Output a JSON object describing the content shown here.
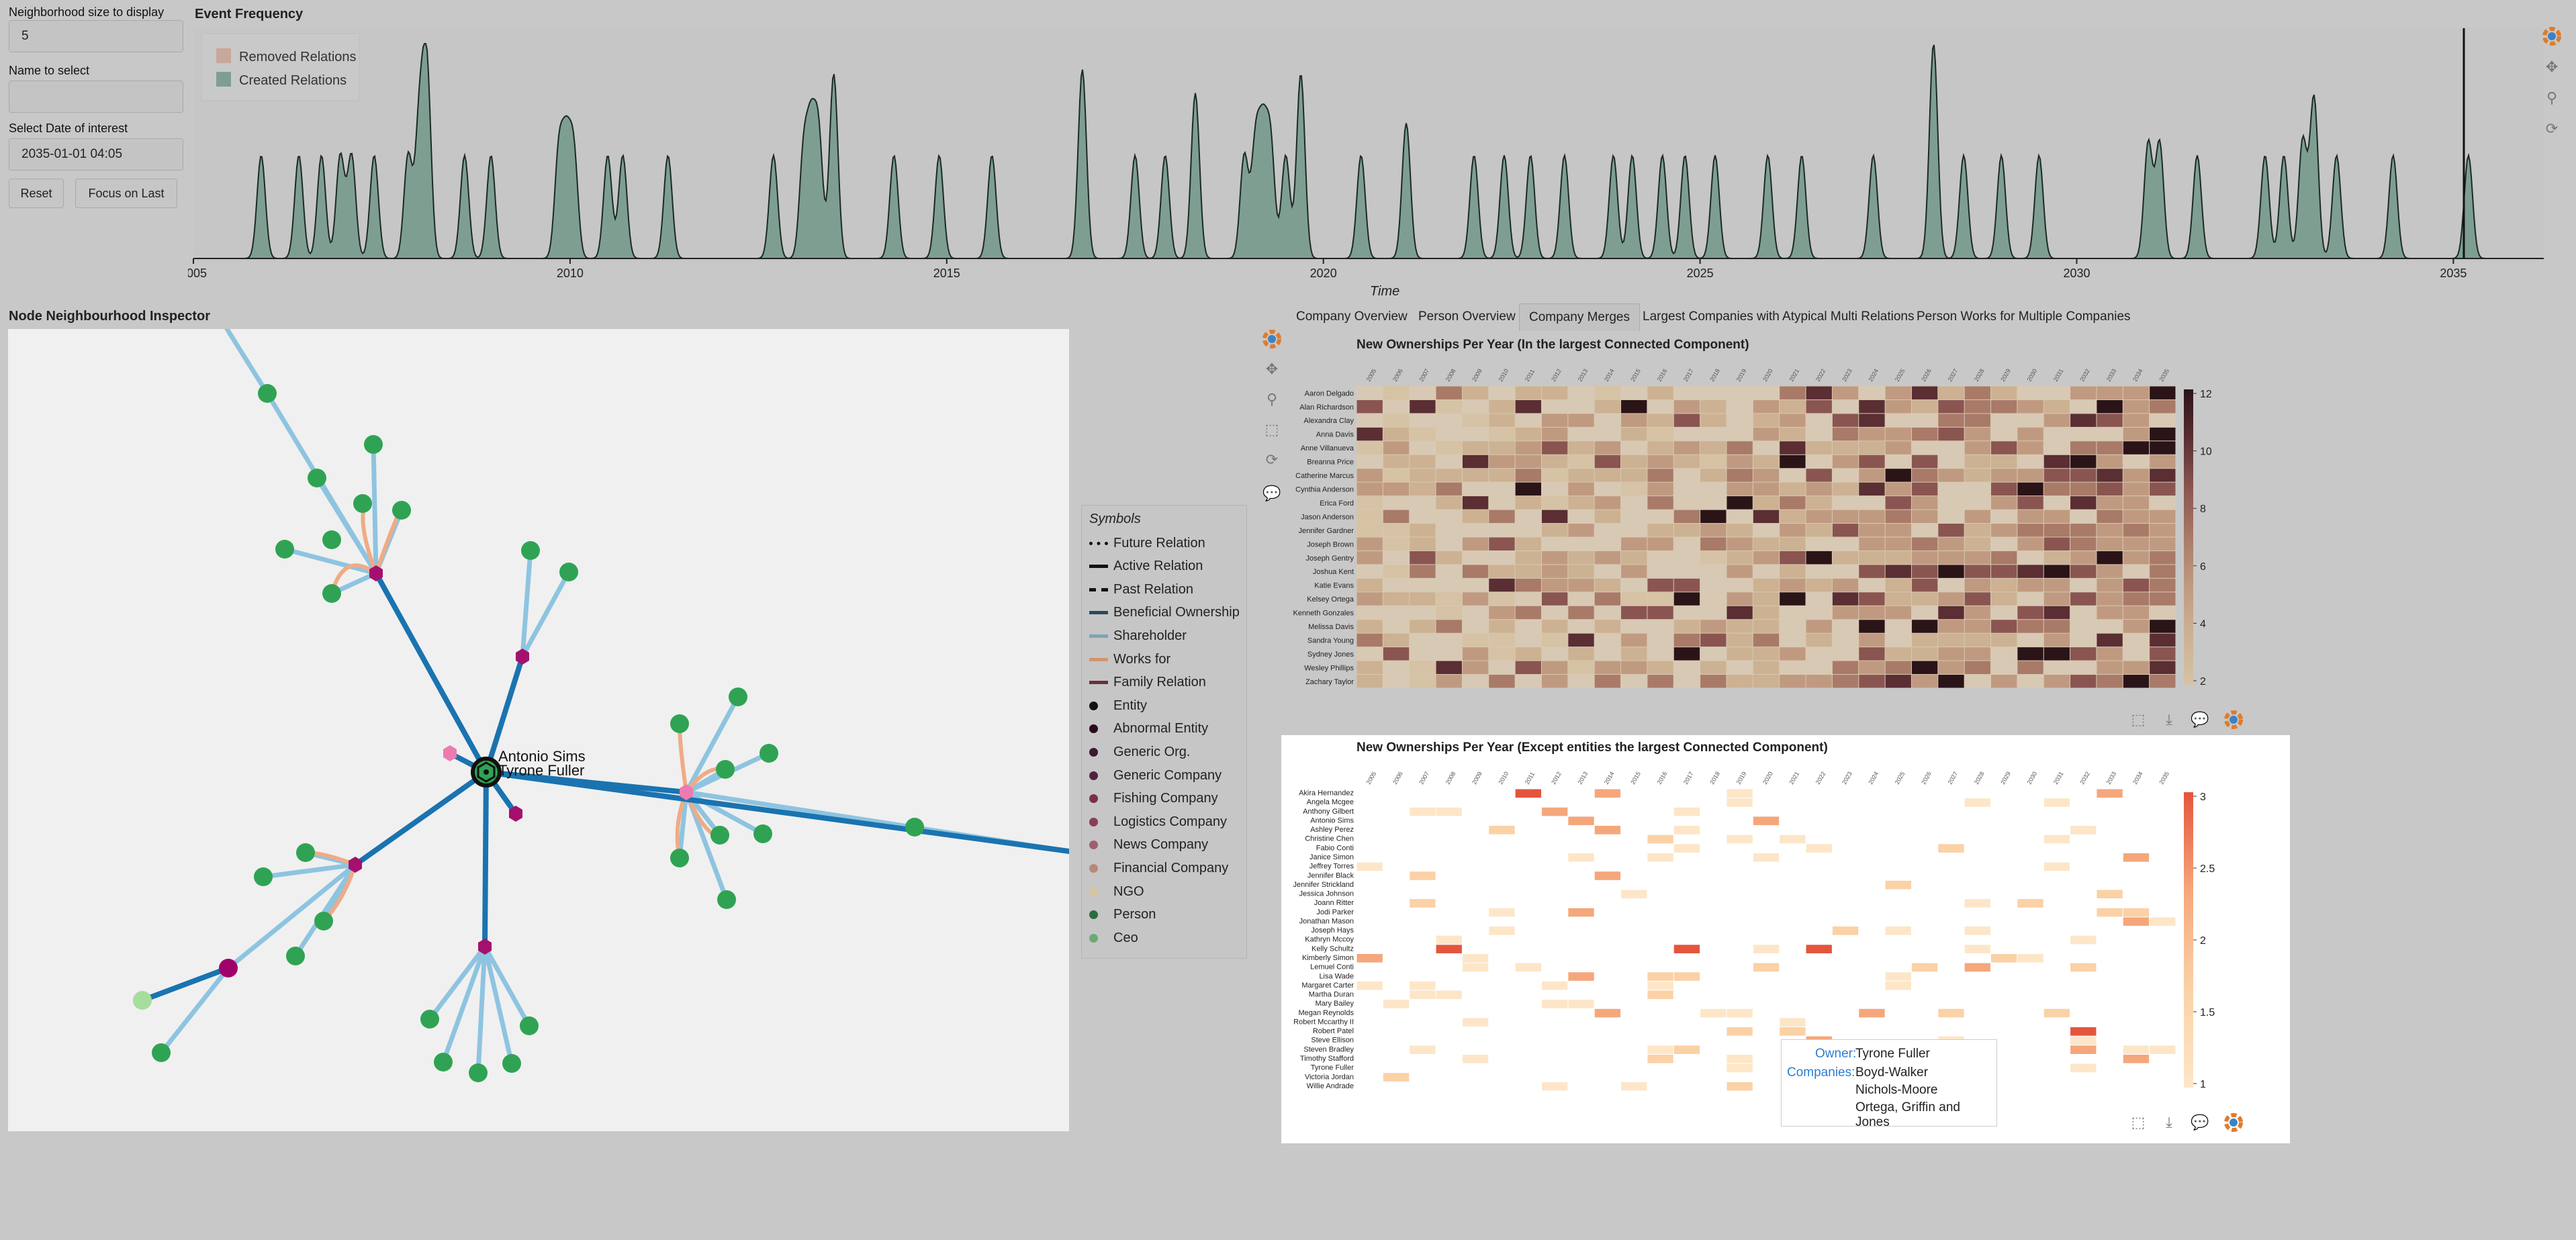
{
  "controls": {
    "neighborhood_label": "Neighborhood size to display",
    "neighborhood_value": "5",
    "name_label": "Name to select",
    "name_value": "",
    "date_label": "Select Date of interest",
    "date_value": "2035-01-01 04:05",
    "reset_label": "Reset",
    "focus_label": "Focus on Last"
  },
  "event_frequency": {
    "title": "Event Frequency",
    "legend": [
      {
        "label": "Removed Relations",
        "color": "#c9a79b"
      },
      {
        "label": "Created Relations",
        "color": "#7f9e92"
      }
    ],
    "xlabel": "Time",
    "ticks": [
      "2005",
      "2010",
      "2015",
      "2020",
      "2025",
      "2030",
      "2035"
    ]
  },
  "inspector": {
    "title": "Node Neighbourhood Inspector",
    "selected_labels": [
      "Antonio Sims",
      "Tyrone Fuller"
    ]
  },
  "symbols": {
    "title": "Symbols",
    "items": [
      {
        "label": "Future Relation",
        "kind": "dotted",
        "color": "#111111"
      },
      {
        "label": "Active Relation",
        "kind": "solid",
        "color": "#111111"
      },
      {
        "label": "Past Relation",
        "kind": "dashed",
        "color": "#111111"
      },
      {
        "label": "Beneficial Ownership",
        "kind": "solid",
        "color": "#2b4a57"
      },
      {
        "label": "Shareholder",
        "kind": "solid",
        "color": "#7fa3b5"
      },
      {
        "label": "Works for",
        "kind": "solid",
        "color": "#d7936b"
      },
      {
        "label": "Family Relation",
        "kind": "solid",
        "color": "#6b2f3c"
      },
      {
        "label": "Entity",
        "kind": "dot",
        "color": "#111111"
      },
      {
        "label": "Abnormal Entity",
        "kind": "dot",
        "color": "#2a0a1e"
      },
      {
        "label": "Generic Org.",
        "kind": "dot",
        "color": "#3b1a33"
      },
      {
        "label": "Generic Company",
        "kind": "dot",
        "color": "#55203f"
      },
      {
        "label": "Fishing Company",
        "kind": "dot",
        "color": "#7a2f4c"
      },
      {
        "label": "Logistics Company",
        "kind": "dot",
        "color": "#8a3d57"
      },
      {
        "label": "News Company",
        "kind": "dot",
        "color": "#a05e6e"
      },
      {
        "label": "Financial Company",
        "kind": "dot",
        "color": "#b7897c"
      },
      {
        "label": "NGO",
        "kind": "dot",
        "color": "#d9c3a0"
      },
      {
        "label": "Person",
        "kind": "dot",
        "color": "#2e6b45"
      },
      {
        "label": "Ceo",
        "kind": "dot",
        "color": "#6ea876"
      }
    ]
  },
  "tabs": [
    {
      "label": "Company Overview",
      "active": false
    },
    {
      "label": "Person Overview",
      "active": false
    },
    {
      "label": "Company Merges",
      "active": true
    },
    {
      "label": "Largest Companies with Atypical Multi Relations",
      "active": false
    },
    {
      "label": "Person Works for Multiple Companies",
      "active": false
    }
  ],
  "heatmap1": {
    "title": "New Ownerships Per Year (In the largest Connected Component)",
    "rows": [
      "Aaron Delgado",
      "Alan Richardson",
      "Alexandra Clay",
      "Anna Davis",
      "Anne Villanueva",
      "Breanna Price",
      "Catherine Marcus",
      "Cynthia Anderson",
      "Erica Ford",
      "Jason Anderson",
      "Jennifer Gardner",
      "Joseph Brown",
      "Joseph Gentry",
      "Joshua Kent",
      "Katie Evans",
      "Kelsey Ortega",
      "Kenneth Gonzales",
      "Melissa Davis",
      "Sandra Young",
      "Sydney Jones",
      "Wesley Phillips",
      "Zachary Taylor"
    ],
    "colorbar_ticks": [
      "12",
      "10",
      "8",
      "6",
      "4",
      "2"
    ]
  },
  "heatmap2": {
    "title": "New Ownerships Per Year (Except entities the largest Connected Component)",
    "rows": [
      "Akira Hernandez",
      "Angela Mcgee",
      "Anthony Gilbert",
      "Antonio Sims",
      "Ashley Perez",
      "Christine Chen",
      "Fabio Conti",
      "Janice Simon",
      "Jeffrey Torres",
      "Jennifer Black",
      "Jennifer Strickland",
      "Jessica Johnson",
      "Joann Ritter",
      "Jodi Parker",
      "Jonathan Mason",
      "Joseph Hays",
      "Kathryn Mccoy",
      "Kelly Schultz",
      "Kimberly Simon",
      "Lemuel Conti",
      "Lisa Wade",
      "Margaret Carter",
      "Martha Duran",
      "Mary Bailey",
      "Megan Reynolds",
      "Robert Mccarthy II",
      "Robert Patel",
      "Steve Ellison",
      "Steven Bradley",
      "Timothy Stafford",
      "Tyrone Fuller",
      "Victoria Jordan",
      "Willie Andrade"
    ],
    "colorbar_ticks": [
      "3",
      "2.5",
      "2",
      "1.5",
      "1"
    ]
  },
  "tooltip": {
    "owner_label": "Owner:",
    "owner_value": "Tyrone Fuller",
    "companies_label": "Companies:",
    "companies": [
      "Boyd-Walker",
      "Nichols-Moore",
      "Ortega, Griffin and Jones"
    ]
  }
}
